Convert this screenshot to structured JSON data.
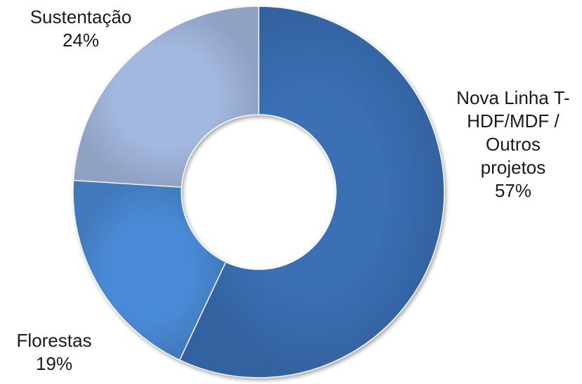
{
  "chart_data": {
    "type": "pie",
    "style": "donut",
    "title": "",
    "slices": [
      {
        "label_lines": [
          "Nova Linha T-",
          "HDF/MDF /",
          "Outros",
          "projetos"
        ],
        "percent_label": "57%",
        "value": 57,
        "color": "#3a6fb5"
      },
      {
        "label_lines": [
          "Florestas"
        ],
        "percent_label": "19%",
        "value": 19,
        "color": "#4a8ad6"
      },
      {
        "label_lines": [
          "Sustentação"
        ],
        "percent_label": "24%",
        "value": 24,
        "color": "#a3b8de"
      }
    ],
    "legend": "none"
  }
}
